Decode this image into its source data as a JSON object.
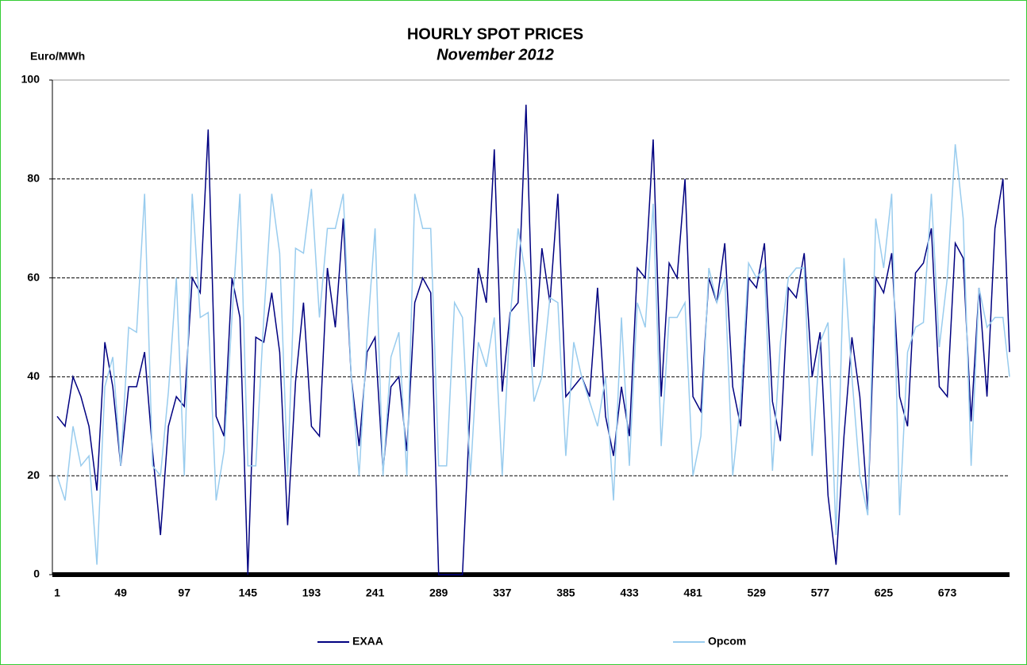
{
  "chart_data": {
    "type": "line",
    "title": "HOURLY SPOT PRICES",
    "subtitle": "November 2012",
    "y_label": "Euro/MWh",
    "x": [
      1,
      7,
      13,
      19,
      25,
      31,
      37,
      43,
      49,
      55,
      61,
      67,
      73,
      79,
      85,
      91,
      97,
      103,
      109,
      115,
      121,
      127,
      133,
      139,
      145,
      151,
      157,
      163,
      169,
      175,
      181,
      187,
      193,
      199,
      205,
      211,
      217,
      223,
      229,
      235,
      241,
      247,
      253,
      259,
      265,
      271,
      277,
      283,
      289,
      295,
      301,
      307,
      313,
      319,
      325,
      331,
      337,
      343,
      349,
      355,
      361,
      367,
      373,
      379,
      385,
      391,
      397,
      403,
      409,
      415,
      421,
      427,
      433,
      439,
      445,
      451,
      457,
      463,
      469,
      475,
      481,
      487,
      493,
      499,
      505,
      511,
      517,
      523,
      529,
      535,
      541,
      547,
      553,
      559,
      565,
      571,
      577,
      583,
      589,
      595,
      601,
      607,
      613,
      619,
      625,
      631,
      637,
      643,
      649,
      655,
      661,
      667,
      673,
      679,
      685,
      691,
      697,
      703,
      709,
      715,
      720
    ],
    "series": [
      {
        "name": "EXAA",
        "color": "#000080",
        "values": [
          32,
          30,
          40,
          36,
          30,
          17,
          47,
          38,
          22,
          38,
          38,
          45,
          25,
          8,
          30,
          36,
          34,
          60,
          57,
          90,
          32,
          28,
          60,
          52,
          0,
          48,
          47,
          57,
          45,
          10,
          39,
          55,
          30,
          28,
          62,
          50,
          72,
          40,
          26,
          45,
          48,
          21,
          38,
          40,
          25,
          55,
          60,
          57,
          0,
          0,
          0,
          0,
          35,
          62,
          55,
          86,
          37,
          53,
          55,
          95,
          42,
          66,
          55,
          77,
          36,
          38,
          40,
          36,
          58,
          32,
          24,
          38,
          28,
          62,
          60,
          88,
          36,
          63,
          60,
          80,
          36,
          33,
          60,
          55,
          67,
          38,
          30,
          60,
          58,
          67,
          35,
          27,
          58,
          56,
          65,
          40,
          49,
          16,
          2,
          28,
          48,
          36,
          13,
          60,
          57,
          65,
          36,
          30,
          61,
          63,
          70,
          38,
          36,
          67,
          64,
          31,
          58,
          36,
          70,
          80,
          45
        ]
      },
      {
        "name": "Opcom",
        "color": "#99ccee",
        "values": [
          20,
          15,
          30,
          22,
          24,
          2,
          38,
          44,
          22,
          50,
          49,
          77,
          22,
          20,
          37,
          60,
          20,
          77,
          52,
          53,
          15,
          25,
          52,
          77,
          22,
          22,
          52,
          77,
          65,
          20,
          66,
          65,
          78,
          52,
          70,
          70,
          77,
          40,
          20,
          48,
          70,
          20,
          44,
          49,
          20,
          77,
          70,
          70,
          22,
          22,
          55,
          52,
          20,
          47,
          42,
          52,
          20,
          52,
          70,
          60,
          35,
          40,
          56,
          55,
          24,
          47,
          40,
          35,
          30,
          40,
          15,
          52,
          22,
          55,
          50,
          75,
          26,
          52,
          52,
          55,
          20,
          28,
          62,
          55,
          60,
          20,
          35,
          63,
          60,
          62,
          21,
          47,
          60,
          62,
          62,
          24,
          47,
          51,
          8,
          64,
          40,
          20,
          12,
          72,
          62,
          77,
          12,
          45,
          50,
          51,
          77,
          46,
          60,
          87,
          72,
          22,
          58,
          50,
          52,
          52,
          40
        ]
      }
    ],
    "xlim": [
      1,
      720
    ],
    "xticks": [
      1,
      49,
      97,
      145,
      193,
      241,
      289,
      337,
      385,
      433,
      481,
      529,
      577,
      625,
      673
    ],
    "ylim": [
      0,
      100
    ],
    "yticks": [
      0,
      20,
      40,
      60,
      80,
      100
    ],
    "grid": true,
    "legend": "bottom"
  }
}
